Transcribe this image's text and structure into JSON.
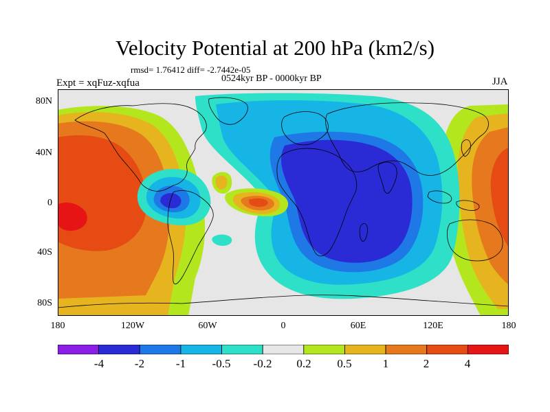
{
  "title": "Velocity Potential at 200 hPa (km2/s)",
  "stats": "rmsd= 1.76412 diff= -2.7442e-05",
  "period": "0524kyr BP - 0000kyr BP",
  "experiment": "Expt = xqFuz-xqfua",
  "season": "JJA",
  "lat_ticks": [
    "80N",
    "40N",
    "0",
    "40S",
    "80S"
  ],
  "lon_ticks": [
    "180",
    "120W",
    "60W",
    "0",
    "60E",
    "120E",
    "180"
  ],
  "colorbar": {
    "labels": [
      "-4",
      "-2",
      "-1",
      "-0.5",
      "-0.2",
      "0.2",
      "0.5",
      "1",
      "2",
      "4"
    ],
    "colors": [
      "#8a1ee6",
      "#2b2bd6",
      "#1e78e6",
      "#17b4e6",
      "#2ee0c8",
      "#e6e6e6",
      "#b4e61e",
      "#e6b41e",
      "#e6781e",
      "#e64b14",
      "#e61414"
    ]
  }
}
